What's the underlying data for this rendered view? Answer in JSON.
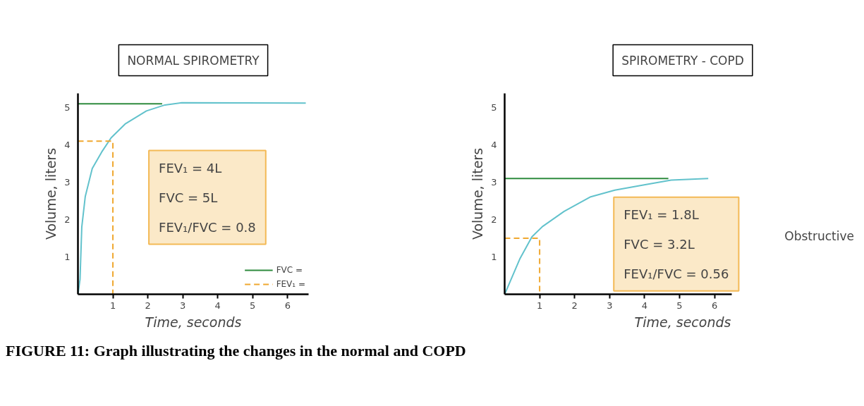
{
  "chart_data": [
    {
      "type": "line",
      "title": "NORMAL SPIROMETRY",
      "xlabel": "Time, seconds",
      "ylabel": "Volume, liters",
      "xlim": [
        0,
        6.6
      ],
      "ylim": [
        0,
        5.38
      ],
      "xticks": [
        1,
        2,
        3,
        4,
        5,
        6
      ],
      "yticks": [
        1,
        2,
        3,
        4,
        5
      ],
      "legend": "bottom right",
      "series": [
        {
          "color": "#62c2cc",
          "x": [
            0.0,
            0.06,
            0.11,
            0.21,
            0.41,
            0.68,
            0.95,
            1.35,
            1.96,
            2.49,
            2.97,
            6.52
          ],
          "values": [
            0.0,
            0.4,
            1.8,
            2.62,
            3.37,
            3.81,
            4.19,
            4.56,
            4.91,
            5.07,
            5.13,
            5.12
          ]
        },
        {
          "name": "FVC =",
          "color": "#2e8b3e",
          "x": [
            0,
            2.41
          ],
          "values": [
            5.1,
            5.1
          ]
        },
        {
          "name": "FEV₁ =",
          "color": "#f0a830",
          "line_style": "dashed",
          "x": [
            0,
            1,
            1
          ],
          "values": [
            4.1,
            4.1,
            0
          ]
        }
      ],
      "annotations": [
        "FEV₁ = 4L",
        "FVC = 5L",
        "FEV₁/FVC = 0.8",
        "FIGURE 11: Graph illustrating the changes in the normal and COPD"
      ]
    },
    {
      "type": "line",
      "title": "SPIROMETRY - COPD",
      "xlabel": "Time, seconds",
      "ylabel": "Volume, liters",
      "xlim": [
        0,
        6.5
      ],
      "ylim": [
        0,
        5.38
      ],
      "xticks": [
        1,
        2,
        3,
        4,
        5,
        6
      ],
      "yticks": [
        1,
        2,
        3,
        4,
        5
      ],
      "series": [
        {
          "color": "#62c2cc",
          "x": [
            0.0,
            0.44,
            0.78,
            1.09,
            1.7,
            2.46,
            3.15,
            3.99,
            4.76,
            5.82
          ],
          "values": [
            0.0,
            0.96,
            1.54,
            1.82,
            2.22,
            2.61,
            2.79,
            2.93,
            3.06,
            3.1
          ]
        },
        {
          "color": "#2e8b3e",
          "x": [
            0,
            4.68
          ],
          "values": [
            3.1,
            3.1
          ]
        },
        {
          "color": "#f0a830",
          "line_style": "dashed",
          "x": [
            0,
            1,
            1
          ],
          "values": [
            1.5,
            1.5,
            0
          ]
        }
      ],
      "annotations": [
        "FEV₁ = 1.8L",
        "FVC = 3.2L",
        "FEV₁/FVC = 0.56",
        "Obstructive"
      ]
    }
  ]
}
